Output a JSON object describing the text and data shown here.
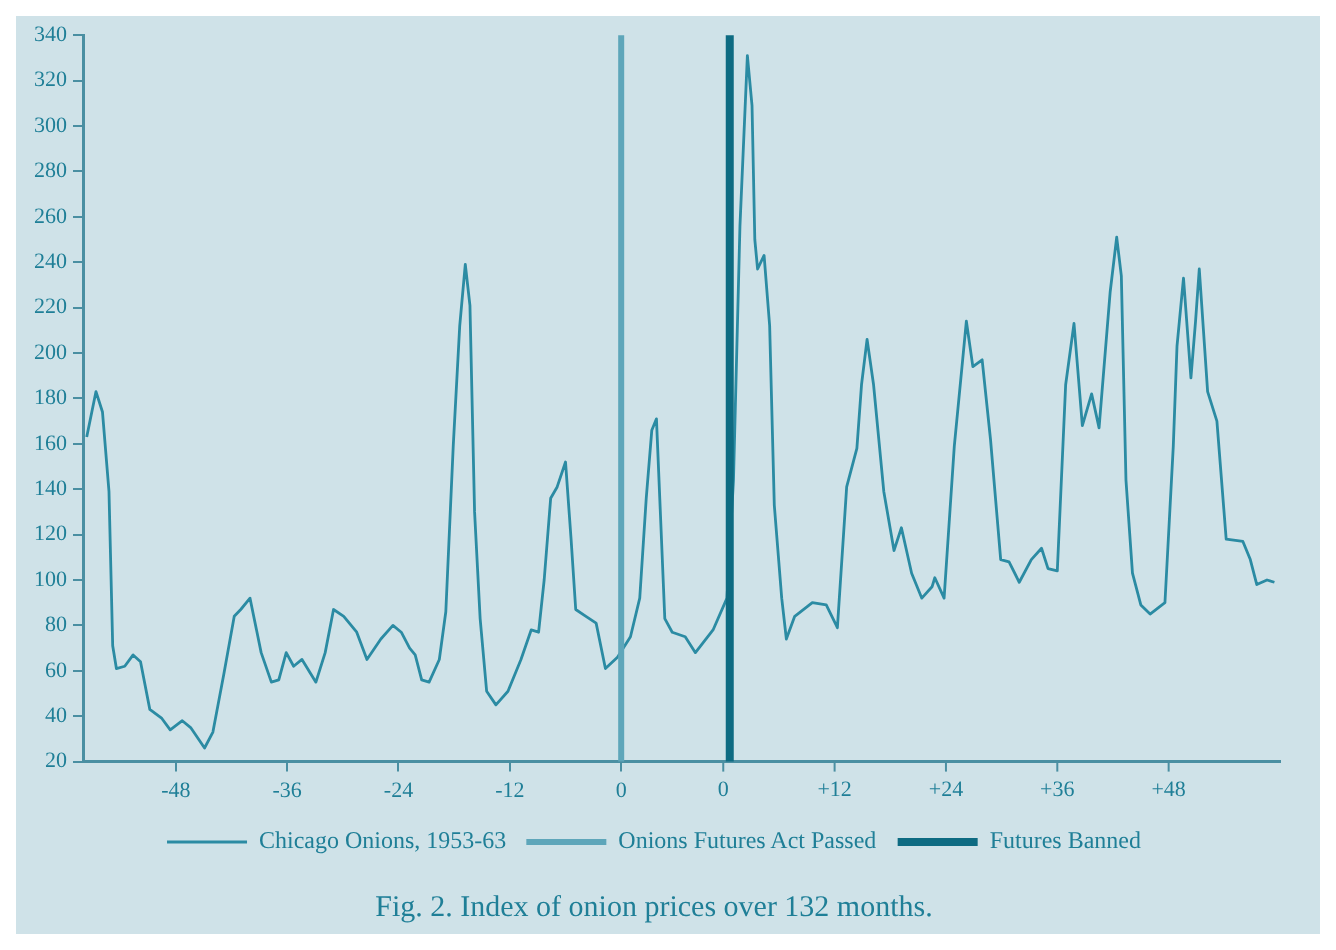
{
  "chart_data": {
    "type": "line",
    "title": "Fig. 2. Index of onion prices over 132 months.",
    "x": [
      -57.6,
      -56.6,
      -55.9,
      -55.2,
      -54.8,
      -54.4,
      -53.5,
      -52.6,
      -51.8,
      -50.8,
      -49.5,
      -48.6,
      -47.3,
      -46.4,
      -44.9,
      -44,
      -42.8,
      -41.7,
      -41,
      -40,
      -38.8,
      -37.7,
      -36.9,
      -36.1,
      -35.3,
      -34.4,
      -32.9,
      -31.9,
      -31,
      -29.9,
      -28.5,
      -27.4,
      -25.9,
      -24.6,
      -23.7,
      -22.8,
      -22.2,
      -21.5,
      -20.7,
      -19.6,
      -18.9,
      -18.1,
      -17.4,
      -16.8,
      -16.3,
      -15.8,
      -15.2,
      -14.5,
      -13.5,
      -12.2,
      -10.8,
      -9.7,
      -8.9,
      -8.3,
      -7.6,
      -6.9,
      -6,
      -5.4,
      -4.9,
      -3.8,
      -2.7,
      -1.7,
      -0.4,
      1,
      2,
      2.7,
      3.3,
      3.8,
      4.7,
      5.5,
      6.9,
      8,
      9.9,
      11.4,
      12.1,
      12.8,
      13.6,
      14.1,
      14.4,
      14.7,
      15.4,
      16,
      16.5,
      17.3,
      17.8,
      18.7,
      20.6,
      22.1,
      23.3,
      24.3,
      25.4,
      25.9,
      26.5,
      27.2,
      28.3,
      29.4,
      30.2,
      31.3,
      32.4,
      33.5,
      33.8,
      34.8,
      35.9,
      36.8,
      37.2,
      37.9,
      38.9,
      39.8,
      40.9,
      41.8,
      42.9,
      44.2,
      45.3,
      46,
      47,
      47.9,
      48.8,
      49.7,
      50.7,
      51.5,
      52.7,
      53.4,
      53.9,
      54.4,
      55.1,
      56,
      57,
      58.6,
      59.5,
      59.9,
      60.6,
      61.4,
      61.9,
      62.3,
      63.2,
      64.2,
      65.2,
      67,
      67.8,
      68.5,
      69.6,
      70.4
    ],
    "series": [
      {
        "name": "Chicago Onions, 1953-63",
        "color": "#2b8ba3",
        "values": [
          163,
          183,
          174,
          139,
          71,
          61,
          62,
          67,
          64,
          43,
          39,
          34,
          38,
          35,
          26,
          33,
          59,
          84,
          87,
          92,
          68,
          55,
          56,
          68,
          62,
          65,
          55,
          68,
          87,
          84,
          77,
          65,
          74,
          80,
          77,
          70,
          67,
          56,
          55,
          65,
          86,
          159,
          212,
          239,
          221,
          130,
          83,
          51,
          45,
          51,
          65,
          78,
          77,
          100,
          136,
          141,
          152,
          118,
          87,
          84,
          81,
          61,
          66,
          75,
          92,
          136,
          166,
          171,
          83,
          77,
          75,
          68,
          78,
          92,
          144,
          256,
          331,
          309,
          250,
          237,
          243,
          212,
          133,
          92,
          74,
          84,
          90,
          89,
          79,
          141,
          158,
          186,
          206,
          186,
          139,
          113,
          123,
          103,
          92,
          97,
          101,
          92,
          159,
          197,
          214,
          194,
          197,
          162,
          109,
          108,
          99,
          109,
          114,
          105,
          104,
          186,
          213,
          168,
          182,
          167,
          227,
          251,
          234,
          144,
          103,
          89,
          85,
          90,
          159,
          203,
          233,
          189,
          214,
          237,
          183,
          170,
          118,
          117,
          109,
          98,
          100,
          99
        ]
      }
    ],
    "xlim": [
      -58,
      71
    ],
    "xticks": [
      -48,
      -36,
      -24,
      -12,
      0
    ],
    "x2lim": [
      -69,
      60
    ],
    "x2ticks": [
      0,
      {
        "value": 12,
        "label": "+12"
      },
      {
        "value": 24,
        "label": "+24"
      },
      {
        "value": 36,
        "label": "+36"
      },
      {
        "value": 48,
        "label": "+48"
      }
    ],
    "ylim": [
      20,
      340
    ],
    "yticks": [
      20,
      40,
      60,
      80,
      100,
      120,
      140,
      160,
      180,
      200,
      220,
      240,
      260,
      280,
      300,
      320,
      340
    ],
    "ref_lines": [
      {
        "axis": "x",
        "value": 0,
        "label": "Onions Futures Act Passed",
        "color": "#5ea6ba"
      },
      {
        "axis": "x",
        "value": 11.7,
        "label": "Futures Banned",
        "color": "#0e6b82"
      }
    ],
    "legend": "bottom",
    "grid": false,
    "marker": "none",
    "line_style": "solid"
  }
}
